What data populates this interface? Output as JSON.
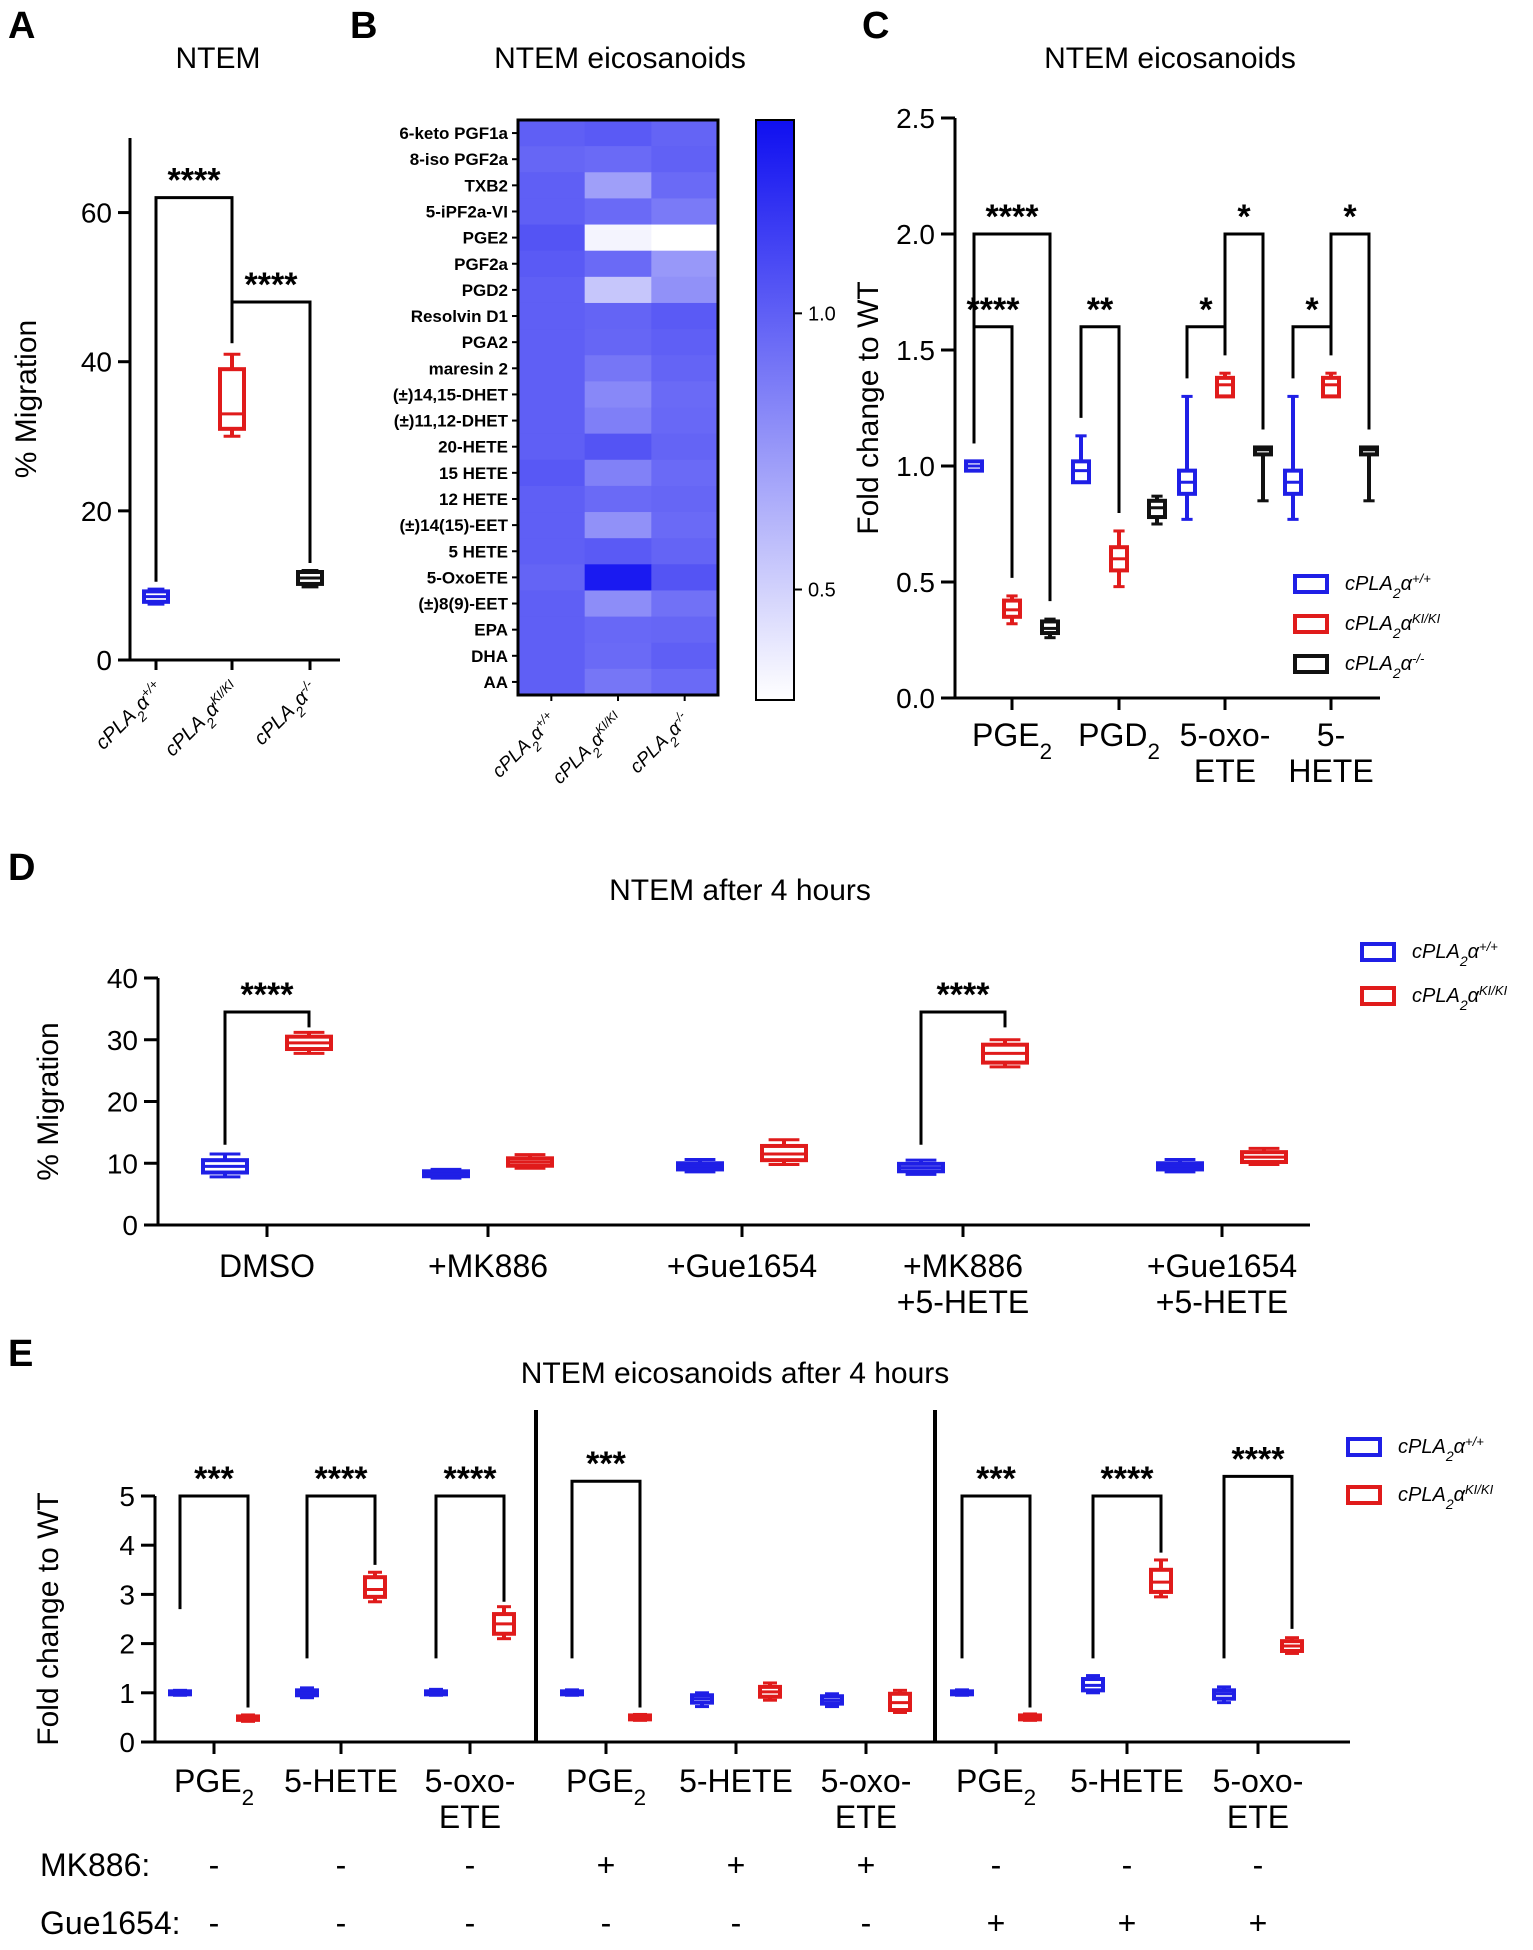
{
  "colors": {
    "wt": "#1f1fe6",
    "ki": "#e01b1b",
    "ko": "#111111",
    "heat_low": "#ffffff",
    "heat_high": "#0f0ff0"
  },
  "genotypes": {
    "wt": {
      "base": "cPLA",
      "sub": "2",
      "alpha": "α",
      "sup": "+/+"
    },
    "ki": {
      "base": "cPLA",
      "sub": "2",
      "alpha": "α",
      "sup": "KI/KI"
    },
    "ko": {
      "base": "cPLA",
      "sub": "2",
      "alpha": "α",
      "sup": "-/-"
    }
  },
  "panels": {
    "A": {
      "label": "A",
      "title": "NTEM"
    },
    "B": {
      "label": "B",
      "title": "NTEM eicosanoids"
    },
    "C": {
      "label": "C",
      "title": "NTEM eicosanoids"
    },
    "D": {
      "label": "D",
      "title": "NTEM after 4 hours"
    },
    "E": {
      "label": "E",
      "title": "NTEM eicosanoids after 4 hours"
    }
  },
  "chart_data": [
    {
      "panel": "A",
      "type": "box",
      "ylabel": "% Migration",
      "ylim": [
        0,
        70
      ],
      "yticks": [
        0,
        20,
        40,
        60
      ],
      "categories": [
        "wt",
        "ki",
        "ko"
      ],
      "boxes": [
        {
          "group": "wt",
          "min": 7.5,
          "q1": 7.8,
          "median": 8.5,
          "q3": 9.2,
          "max": 9.5
        },
        {
          "group": "ki",
          "min": 30,
          "q1": 31,
          "median": 33,
          "q3": 39,
          "max": 41
        },
        {
          "group": "ko",
          "min": 9.8,
          "q1": 10.2,
          "median": 11,
          "q3": 11.8,
          "max": 12
        }
      ],
      "significance": [
        {
          "from": 0,
          "to": 1,
          "label": "****"
        },
        {
          "from": 1,
          "to": 2,
          "label": "****"
        }
      ]
    },
    {
      "panel": "B",
      "type": "heatmap",
      "rows": [
        "6-keto PGF1a",
        "8-iso PGF2a",
        "TXB2",
        "5-iPF2a-VI",
        "PGE2",
        "PGF2a",
        "PGD2",
        "Resolvin D1",
        "PGA2",
        "maresin 2",
        "(±)14,15-DHET",
        "(±)11,12-DHET",
        "20-HETE",
        "15 HETE",
        "12 HETE",
        "(±)14(15)-EET",
        "5 HETE",
        "5-OxoETE",
        "(±)8(9)-EET",
        "EPA",
        "DHA",
        "AA"
      ],
      "columns": [
        "wt",
        "ki",
        "ko"
      ],
      "values": [
        [
          1.0,
          1.02,
          0.98
        ],
        [
          0.97,
          0.95,
          0.99
        ],
        [
          1.0,
          0.72,
          0.95
        ],
        [
          1.0,
          0.95,
          0.88
        ],
        [
          1.05,
          0.35,
          0.28
        ],
        [
          1.02,
          0.95,
          0.75
        ],
        [
          1.0,
          0.55,
          0.78
        ],
        [
          1.0,
          0.98,
          1.02
        ],
        [
          1.0,
          0.97,
          1.0
        ],
        [
          1.0,
          0.9,
          0.98
        ],
        [
          1.0,
          0.82,
          0.95
        ],
        [
          1.0,
          0.86,
          0.96
        ],
        [
          1.0,
          1.05,
          0.98
        ],
        [
          1.03,
          0.85,
          0.95
        ],
        [
          1.0,
          0.95,
          0.97
        ],
        [
          1.0,
          0.78,
          0.95
        ],
        [
          1.0,
          1.02,
          0.98
        ],
        [
          0.98,
          1.3,
          1.05
        ],
        [
          1.0,
          0.8,
          0.92
        ],
        [
          1.0,
          0.96,
          0.97
        ],
        [
          1.0,
          0.95,
          1.0
        ],
        [
          1.0,
          0.9,
          0.95
        ]
      ],
      "scale_range": [
        0.3,
        1.35
      ],
      "scale_ticks": [
        0.5,
        1.0
      ],
      "scale_tick_labels": [
        "0.5",
        "1.0"
      ]
    },
    {
      "panel": "C",
      "type": "box",
      "ylabel": "Fold change to WT",
      "ylim": [
        0,
        2.5
      ],
      "yticks": [
        0.0,
        0.5,
        1.0,
        1.5,
        2.0,
        2.5
      ],
      "ytick_labels": [
        "0.0",
        "0.5",
        "1.0",
        "1.5",
        "2.0",
        "2.5"
      ],
      "categories": [
        {
          "line1": "PGE",
          "sub": "2",
          "line2": ""
        },
        {
          "line1": "PGD",
          "sub": "2",
          "line2": ""
        },
        {
          "line1": "5-oxo-",
          "sub": "",
          "line2": "ETE"
        },
        {
          "line1": "5-",
          "sub": "",
          "line2": "HETE"
        }
      ],
      "series": [
        "wt",
        "ki",
        "ko"
      ],
      "boxes": [
        [
          {
            "min": 0.98,
            "q1": 0.98,
            "median": 1.0,
            "q3": 1.02,
            "max": 1.02
          },
          {
            "min": 0.32,
            "q1": 0.35,
            "median": 0.38,
            "q3": 0.42,
            "max": 0.44
          },
          {
            "min": 0.26,
            "q1": 0.28,
            "median": 0.3,
            "q3": 0.33,
            "max": 0.34
          }
        ],
        [
          {
            "min": 0.93,
            "q1": 0.93,
            "median": 0.98,
            "q3": 1.02,
            "max": 1.13
          },
          {
            "min": 0.48,
            "q1": 0.55,
            "median": 0.6,
            "q3": 0.65,
            "max": 0.72
          },
          {
            "min": 0.75,
            "q1": 0.78,
            "median": 0.82,
            "q3": 0.85,
            "max": 0.87
          }
        ],
        [
          {
            "min": 0.77,
            "q1": 0.88,
            "median": 0.93,
            "q3": 0.98,
            "max": 1.3
          },
          {
            "min": 1.3,
            "q1": 1.3,
            "median": 1.35,
            "q3": 1.38,
            "max": 1.4
          },
          {
            "min": 0.85,
            "q1": 1.05,
            "median": 1.07,
            "q3": 1.08,
            "max": 1.08
          }
        ],
        [
          {
            "min": 0.77,
            "q1": 0.88,
            "median": 0.93,
            "q3": 0.98,
            "max": 1.3
          },
          {
            "min": 1.3,
            "q1": 1.3,
            "median": 1.35,
            "q3": 1.38,
            "max": 1.4
          },
          {
            "min": 0.85,
            "q1": 1.05,
            "median": 1.07,
            "q3": 1.08,
            "max": 1.08
          }
        ]
      ],
      "significance": [
        {
          "cat": 0,
          "from": 0,
          "to": 2,
          "label": "****",
          "y": 2.0
        },
        {
          "cat": 0,
          "from": 0,
          "to": 1,
          "label": "****",
          "y": 1.6
        },
        {
          "cat": 1,
          "from": 0,
          "to": 1,
          "label": "**",
          "y": 1.6
        },
        {
          "cat": 2,
          "from": 0,
          "to": 1,
          "label": "*",
          "y": 1.6
        },
        {
          "cat": 2,
          "from": 1,
          "to": 2,
          "label": "*",
          "y": 2.0
        },
        {
          "cat": 3,
          "from": 0,
          "to": 1,
          "label": "*",
          "y": 1.6
        },
        {
          "cat": 3,
          "from": 1,
          "to": 2,
          "label": "*",
          "y": 2.0
        }
      ],
      "legend": [
        "wt",
        "ki",
        "ko"
      ]
    },
    {
      "panel": "D",
      "type": "box",
      "ylabel": "% Migration",
      "ylim": [
        0,
        40
      ],
      "yticks": [
        0,
        10,
        20,
        30,
        40
      ],
      "categories": [
        {
          "line1": "DMSO",
          "line2": ""
        },
        {
          "line1": "+MK886",
          "line2": ""
        },
        {
          "line1": "+Gue1654",
          "line2": ""
        },
        {
          "line1": "+MK886",
          "line2": "+5-HETE"
        },
        {
          "line1": "+Gue1654",
          "line2": "+5-HETE"
        }
      ],
      "series": [
        "wt",
        "ki"
      ],
      "boxes": [
        [
          {
            "min": 7.8,
            "q1": 8.5,
            "median": 9.5,
            "q3": 10.5,
            "max": 11.5
          },
          {
            "min": 27.8,
            "q1": 28.5,
            "median": 29.5,
            "q3": 30.5,
            "max": 31.2
          }
        ],
        [
          {
            "min": 7.6,
            "q1": 7.9,
            "median": 8.3,
            "q3": 8.7,
            "max": 9.0
          },
          {
            "min": 9.2,
            "q1": 9.6,
            "median": 10.2,
            "q3": 10.8,
            "max": 11.4
          }
        ],
        [
          {
            "min": 8.6,
            "q1": 9.0,
            "median": 9.5,
            "q3": 10.0,
            "max": 10.6
          },
          {
            "min": 9.8,
            "q1": 10.5,
            "median": 11.5,
            "q3": 12.8,
            "max": 13.8
          }
        ],
        [
          {
            "min": 8.2,
            "q1": 8.7,
            "median": 9.3,
            "q3": 9.9,
            "max": 10.5
          },
          {
            "min": 25.6,
            "q1": 26.3,
            "median": 27.8,
            "q3": 29.2,
            "max": 30.0
          }
        ],
        [
          {
            "min": 8.6,
            "q1": 9.0,
            "median": 9.5,
            "q3": 10.0,
            "max": 10.6
          },
          {
            "min": 9.8,
            "q1": 10.2,
            "median": 11.0,
            "q3": 11.8,
            "max": 12.4
          }
        ]
      ],
      "significance": [
        {
          "cat": 0,
          "label": "****",
          "y": 34.5
        },
        {
          "cat": 3,
          "label": "****",
          "y": 34.5
        }
      ],
      "legend": [
        "wt",
        "ki"
      ]
    },
    {
      "panel": "E",
      "type": "box",
      "ylabel": "Fold change to WT",
      "ylim": [
        0,
        5
      ],
      "yticks": [
        0,
        1,
        2,
        3,
        4,
        5
      ],
      "categories": [
        {
          "line1": "PGE",
          "sub": "2",
          "line2": ""
        },
        {
          "line1": "5-HETE",
          "sub": "",
          "line2": ""
        },
        {
          "line1": "5-oxo-",
          "sub": "",
          "line2": "ETE"
        },
        {
          "line1": "PGE",
          "sub": "2",
          "line2": ""
        },
        {
          "line1": "5-HETE",
          "sub": "",
          "line2": ""
        },
        {
          "line1": "5-oxo-",
          "sub": "",
          "line2": "ETE"
        },
        {
          "line1": "PGE",
          "sub": "2",
          "line2": ""
        },
        {
          "line1": "5-HETE",
          "sub": "",
          "line2": ""
        },
        {
          "line1": "5-oxo-",
          "sub": "",
          "line2": "ETE"
        }
      ],
      "series": [
        "wt",
        "ki"
      ],
      "boxes": [
        [
          {
            "min": 0.95,
            "q1": 0.97,
            "median": 1.0,
            "q3": 1.03,
            "max": 1.05
          },
          {
            "min": 0.42,
            "q1": 0.45,
            "median": 0.48,
            "q3": 0.52,
            "max": 0.55
          }
        ],
        [
          {
            "min": 0.9,
            "q1": 0.95,
            "median": 1.0,
            "q3": 1.05,
            "max": 1.1
          },
          {
            "min": 2.85,
            "q1": 2.95,
            "median": 3.1,
            "q3": 3.35,
            "max": 3.45
          }
        ],
        [
          {
            "min": 0.95,
            "q1": 0.97,
            "median": 1.0,
            "q3": 1.03,
            "max": 1.07
          },
          {
            "min": 2.1,
            "q1": 2.2,
            "median": 2.4,
            "q3": 2.6,
            "max": 2.75
          }
        ],
        [
          {
            "min": 0.95,
            "q1": 0.97,
            "median": 1.0,
            "q3": 1.03,
            "max": 1.06
          },
          {
            "min": 0.44,
            "q1": 0.46,
            "median": 0.5,
            "q3": 0.54,
            "max": 0.56
          }
        ],
        [
          {
            "min": 0.72,
            "q1": 0.8,
            "median": 0.88,
            "q3": 0.95,
            "max": 1.0
          },
          {
            "min": 0.85,
            "q1": 0.92,
            "median": 1.02,
            "q3": 1.12,
            "max": 1.2
          }
        ],
        [
          {
            "min": 0.72,
            "q1": 0.78,
            "median": 0.85,
            "q3": 0.93,
            "max": 0.98
          },
          {
            "min": 0.6,
            "q1": 0.65,
            "median": 0.8,
            "q3": 0.98,
            "max": 1.05
          }
        ],
        [
          {
            "min": 0.95,
            "q1": 0.97,
            "median": 1.0,
            "q3": 1.03,
            "max": 1.06
          },
          {
            "min": 0.44,
            "q1": 0.46,
            "median": 0.5,
            "q3": 0.54,
            "max": 0.57
          }
        ],
        [
          {
            "min": 1.0,
            "q1": 1.05,
            "median": 1.15,
            "q3": 1.28,
            "max": 1.35
          },
          {
            "min": 2.95,
            "q1": 3.05,
            "median": 3.25,
            "q3": 3.5,
            "max": 3.7
          }
        ],
        [
          {
            "min": 0.8,
            "q1": 0.88,
            "median": 0.98,
            "q3": 1.05,
            "max": 1.12
          },
          {
            "min": 1.8,
            "q1": 1.85,
            "median": 1.95,
            "q3": 2.05,
            "max": 2.12
          }
        ]
      ],
      "significance": [
        {
          "cat": 0,
          "label": "***",
          "y1": 2.7,
          "y2": 0.7,
          "top": 5.0
        },
        {
          "cat": 1,
          "label": "****",
          "y1": 1.7,
          "y2": 3.6,
          "top": 5.0
        },
        {
          "cat": 2,
          "label": "****",
          "y1": 1.7,
          "y2": 2.85,
          "top": 5.0
        },
        {
          "cat": 3,
          "label": "***",
          "y1": 1.7,
          "y2": 0.7,
          "top": 5.3
        },
        {
          "cat": 6,
          "label": "***",
          "y1": 1.7,
          "y2": 0.7,
          "top": 5.0
        },
        {
          "cat": 7,
          "label": "****",
          "y1": 1.7,
          "y2": 3.85,
          "top": 5.0
        },
        {
          "cat": 8,
          "label": "****",
          "y1": 1.7,
          "y2": 2.3,
          "top": 5.4
        }
      ],
      "treatments": [
        {
          "name": "MK886:",
          "values": [
            "-",
            "-",
            "-",
            "+",
            "+",
            "+",
            "-",
            "-",
            "-"
          ]
        },
        {
          "name": "Gue1654:",
          "values": [
            "-",
            "-",
            "-",
            "-",
            "-",
            "-",
            "+",
            "+",
            "+"
          ]
        }
      ],
      "legend": [
        "wt",
        "ki"
      ]
    }
  ]
}
